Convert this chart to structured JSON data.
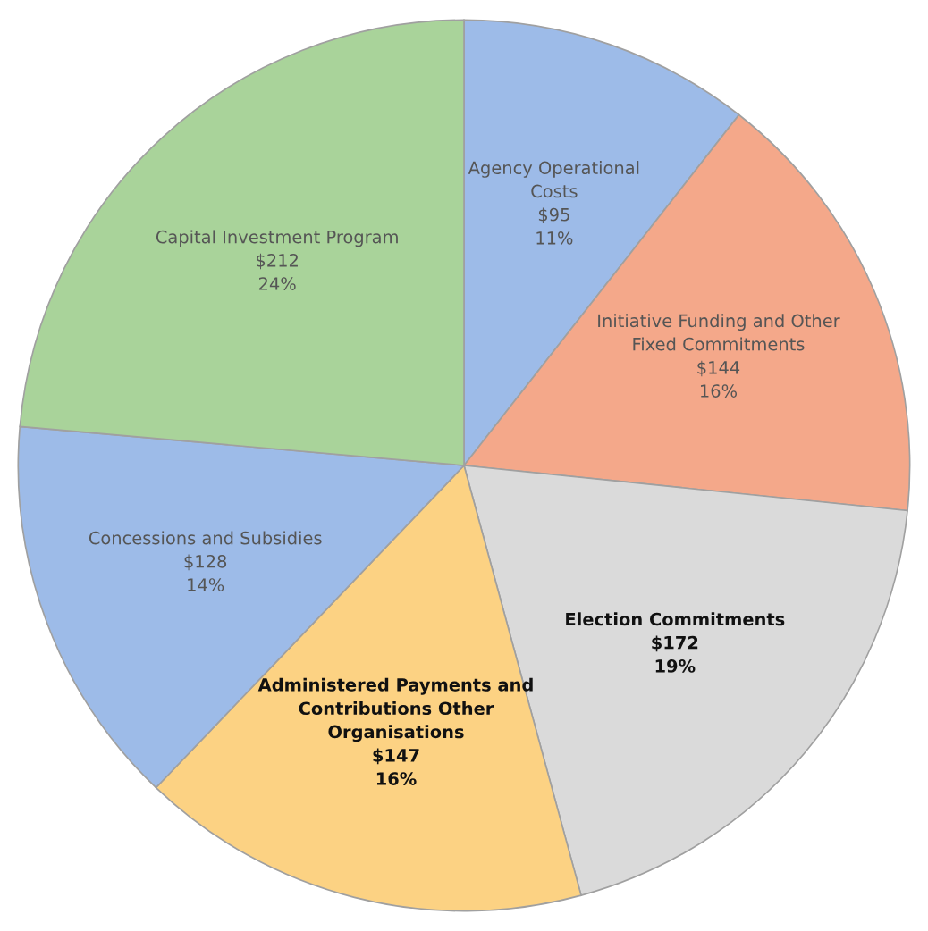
{
  "chart_data": {
    "type": "pie",
    "categories": [
      "Agency Operational\nCosts",
      "Initiative Funding and Other\nFixed Commitments",
      "Election Commitments",
      "Administered Payments and\nContributions Other\nOrganisations",
      "Concessions and Subsidies",
      "Capital Investment Program"
    ],
    "values": [
      95,
      144,
      172,
      147,
      128,
      212
    ],
    "value_labels": [
      "$95\n11%",
      "$144\n16%",
      "$172\n19%",
      "$147\n16%",
      "$128\n14%",
      "$212\n24%"
    ],
    "colors": [
      "#9dbbe8",
      "#f4a88a",
      "#dadada",
      "#fcd283",
      "#9dbbe8",
      "#a9d39a"
    ],
    "legend": false
  }
}
